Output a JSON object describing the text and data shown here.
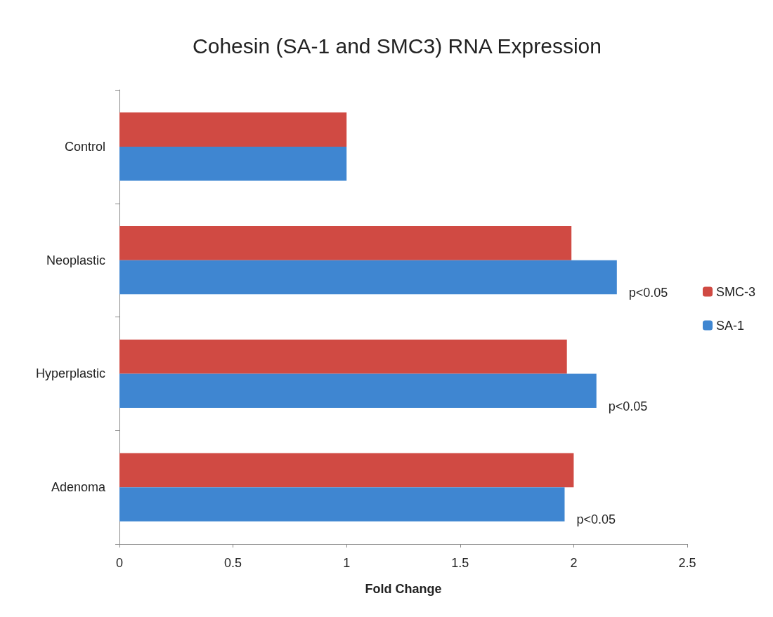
{
  "chart_data": {
    "type": "bar",
    "orientation": "horizontal",
    "title": "Cohesin (SA-1 and SMC3) RNA Expression",
    "xlabel": "Fold Change",
    "categories": [
      "Control",
      "Neoplastic",
      "Hyperplastic",
      "Adenoma"
    ],
    "series": [
      {
        "name": "SMC-3",
        "color": "#d04a43",
        "values": [
          1.0,
          1.99,
          1.97,
          2.0
        ]
      },
      {
        "name": "SA-1",
        "color": "#3f86d1",
        "values": [
          1.0,
          2.19,
          2.1,
          1.96
        ]
      }
    ],
    "xlim": [
      0,
      2.5
    ],
    "xticks": [
      0,
      0.5,
      1,
      1.5,
      2,
      2.5
    ],
    "grid": false,
    "legend": "right",
    "annotations": [
      {
        "text": "p<0.05",
        "x": 2.19,
        "y": "Neoplastic"
      },
      {
        "text": "p<0.05",
        "x": 2.1,
        "y": "Hyperplastic"
      },
      {
        "text": "p<0.05",
        "x": 1.96,
        "y": "Adenoma"
      }
    ]
  }
}
